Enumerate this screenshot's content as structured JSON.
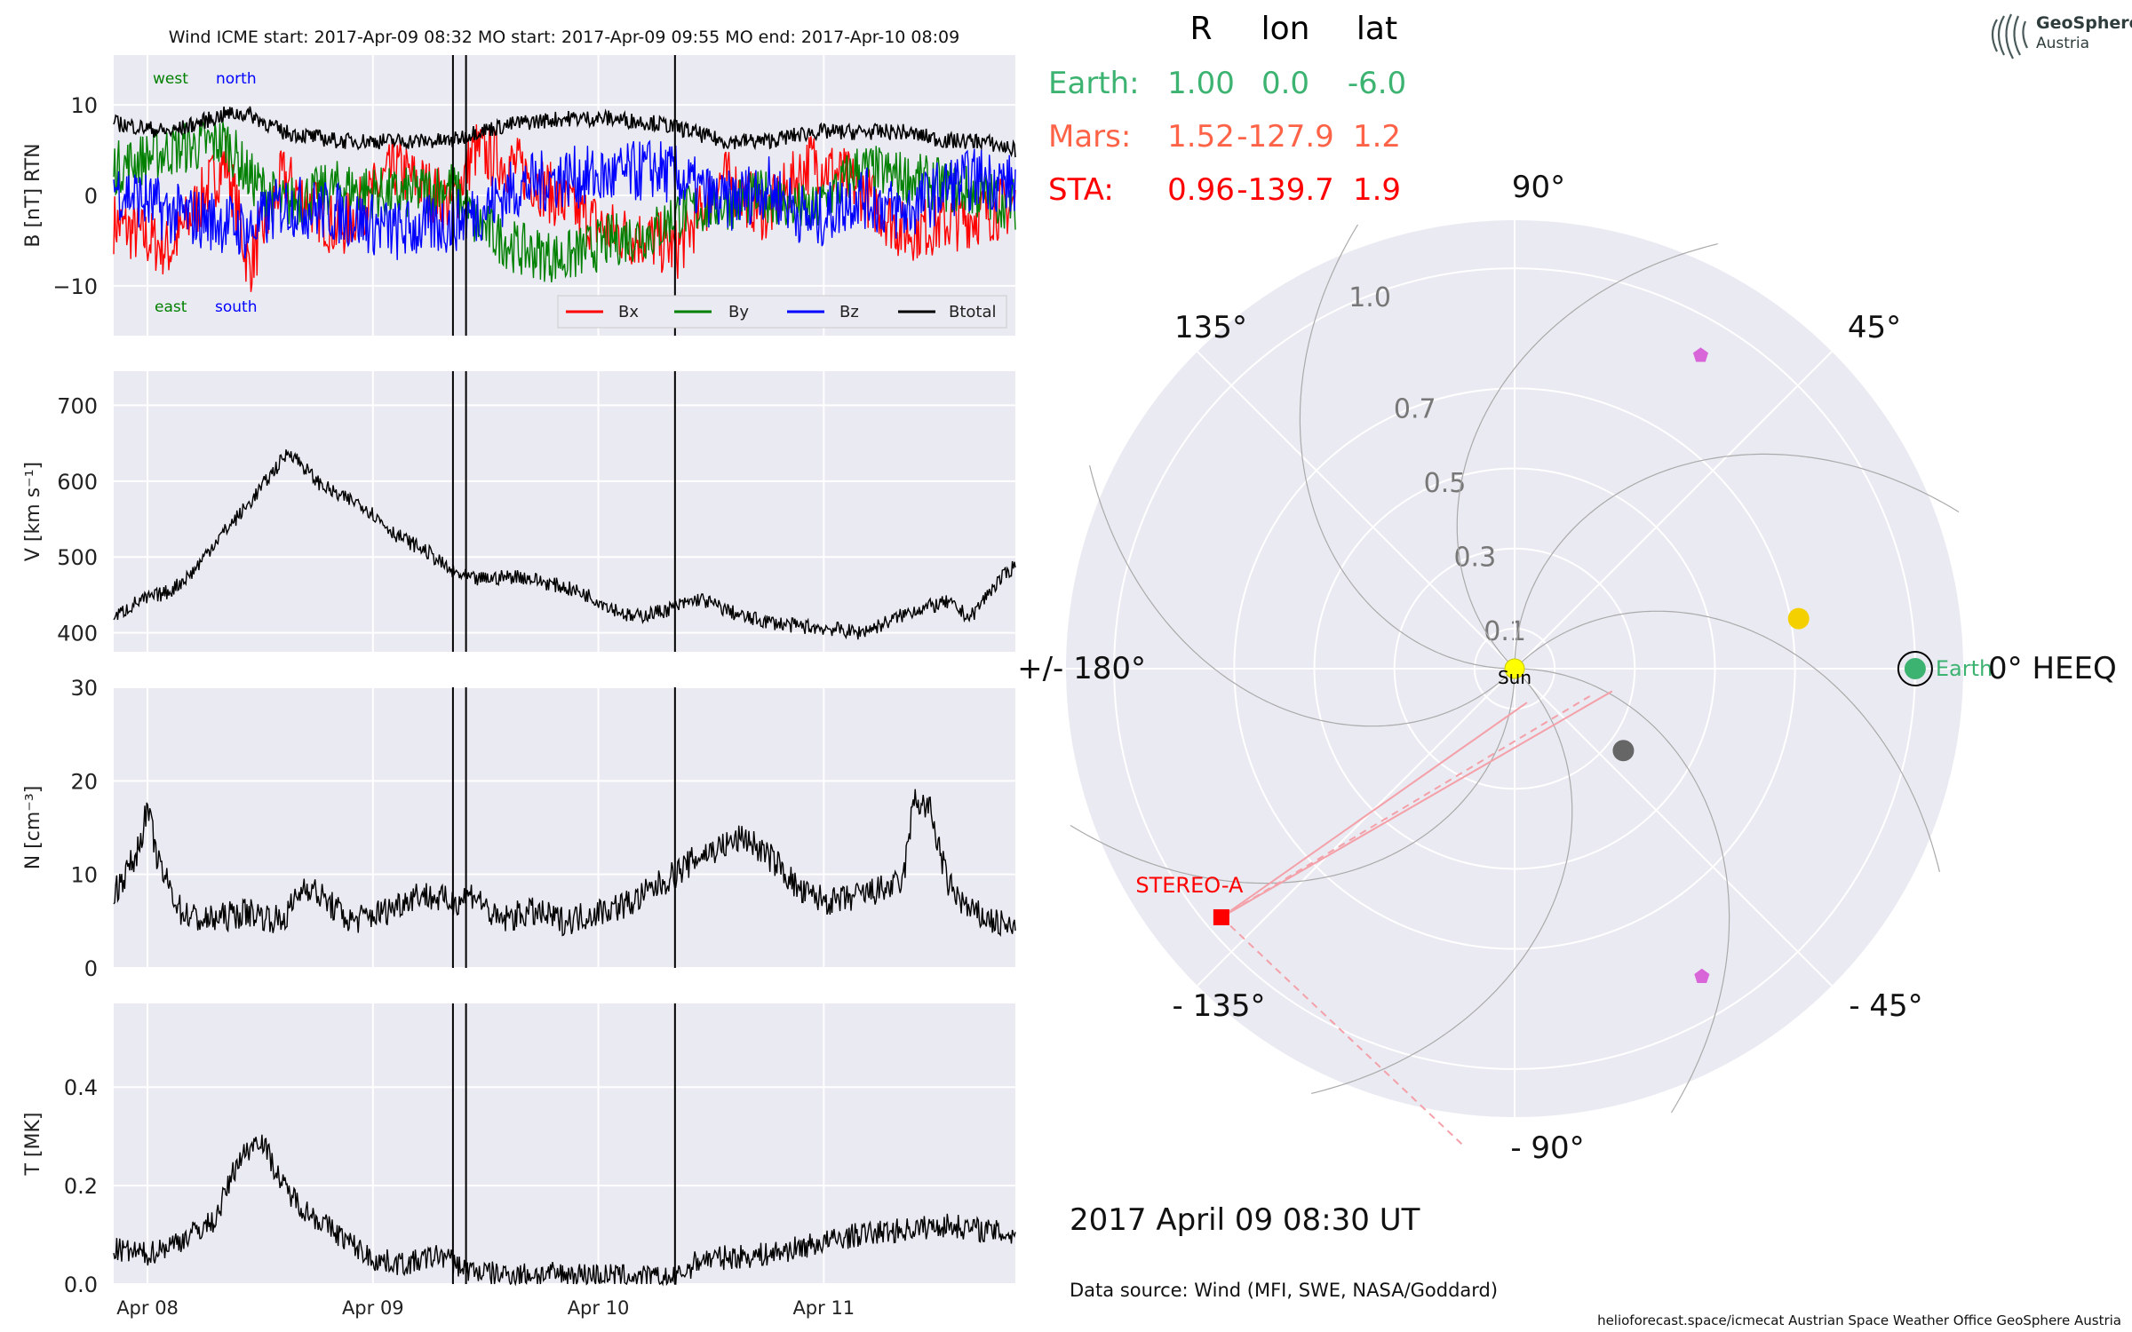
{
  "chart_data": [
    {
      "type": "line",
      "title": "Wind    ICME start: 2017-Apr-09 08:32    MO start: 2017-Apr-09 09:55    MO end: 2017-Apr-10 08:09",
      "ylabel": "B [nT] RTN",
      "ylim": [
        -15.5,
        15.5
      ],
      "yticks": [
        -10,
        0,
        10
      ],
      "ytick_labels": [
        "−10",
        "0",
        "10"
      ],
      "x_range_days": [
        0,
        4.0
      ],
      "x_ticks": [
        {
          "label": "Apr 08",
          "day": 0.15
        },
        {
          "label": "Apr 09",
          "day": 1.15
        },
        {
          "label": "Apr 10",
          "day": 2.15
        },
        {
          "label": "Apr 11",
          "day": 3.15
        }
      ],
      "vlines_day": [
        1.505,
        1.563,
        2.49
      ],
      "annotations": {
        "west": "west",
        "north": "north",
        "east": "east",
        "south": "south"
      },
      "legend": {
        "placement": "lower-right",
        "entries": [
          "Bx",
          "By",
          "Bz",
          "Btotal"
        ]
      },
      "series": [
        {
          "name": "Bx",
          "color": "#ff0000",
          "x": [
            0,
            0.25,
            0.5,
            0.6,
            0.75,
            1,
            1.25,
            1.5,
            1.6,
            1.8,
            2,
            2.2,
            2.4,
            2.5,
            2.7,
            2.9,
            3.1,
            3.3,
            3.5,
            3.7,
            3.85,
            4.0
          ],
          "y": [
            -3,
            -6,
            4,
            -8,
            2,
            -4,
            3,
            -1,
            5,
            3,
            -1,
            -4,
            -5,
            -6,
            2,
            -2,
            4,
            1,
            -4,
            -3,
            -2,
            -1
          ]
        },
        {
          "name": "By",
          "color": "#008000",
          "x": [
            0,
            0.25,
            0.5,
            0.6,
            0.75,
            1,
            1.25,
            1.5,
            1.6,
            1.8,
            2,
            2.2,
            2.4,
            2.5,
            2.7,
            2.9,
            3.1,
            3.3,
            3.5,
            3.7,
            3.85,
            4.0
          ],
          "y": [
            3,
            5,
            6,
            2,
            -1,
            1,
            0,
            1,
            -3,
            -6,
            -7,
            -5,
            -4,
            -2,
            -1,
            0,
            -2,
            3,
            2,
            1,
            0,
            -1
          ]
        },
        {
          "name": "Bz",
          "color": "#0000ff",
          "x": [
            0,
            0.25,
            0.5,
            0.6,
            0.75,
            1,
            1.25,
            1.5,
            1.6,
            1.8,
            2,
            2.2,
            2.4,
            2.5,
            2.7,
            2.9,
            3.1,
            3.3,
            3.5,
            3.7,
            3.85,
            4.0
          ],
          "y": [
            1,
            -2,
            -3,
            -4,
            -1,
            -2,
            -4,
            -3,
            -2,
            1,
            2,
            2,
            3,
            2,
            -1,
            1,
            -3,
            0,
            -2,
            1,
            2,
            1
          ]
        },
        {
          "name": "Btotal",
          "color": "#000000",
          "x": [
            0,
            0.25,
            0.5,
            0.6,
            0.75,
            1,
            1.25,
            1.5,
            1.6,
            1.8,
            2,
            2.2,
            2.4,
            2.5,
            2.7,
            2.9,
            3.1,
            3.3,
            3.5,
            3.7,
            3.85,
            4.0
          ],
          "y": [
            8,
            7,
            9,
            9,
            7,
            6,
            6,
            6,
            7,
            8,
            8.5,
            8.5,
            8,
            7.5,
            6,
            6,
            7,
            7,
            7,
            6,
            6,
            5
          ]
        }
      ]
    },
    {
      "type": "line",
      "ylabel": "V [km s⁻¹]",
      "ylim": [
        375,
        745
      ],
      "yticks": [
        400,
        500,
        600,
        700
      ],
      "ytick_labels": [
        "400",
        "500",
        "600",
        "700"
      ],
      "x_range_days": [
        0,
        4.0
      ],
      "vlines_day": [
        1.505,
        1.563,
        2.49
      ],
      "series": [
        {
          "color": "#000000",
          "x": [
            0,
            0.1,
            0.25,
            0.35,
            0.45,
            0.6,
            0.7,
            0.78,
            0.9,
            1.0,
            1.1,
            1.25,
            1.4,
            1.5,
            1.6,
            1.8,
            2.0,
            2.1,
            2.3,
            2.45,
            2.6,
            2.8,
            3.0,
            3.2,
            3.3,
            3.4,
            3.55,
            3.7,
            3.8,
            3.9,
            4.0
          ],
          "y": [
            420,
            440,
            455,
            480,
            520,
            570,
            610,
            640,
            600,
            580,
            570,
            530,
            505,
            480,
            470,
            475,
            460,
            450,
            420,
            430,
            445,
            420,
            410,
            405,
            400,
            410,
            430,
            440,
            420,
            460,
            490
          ]
        }
      ]
    },
    {
      "type": "line",
      "ylabel": "N [cm⁻³]",
      "ylim": [
        0,
        30
      ],
      "yticks": [
        0,
        10,
        20,
        30
      ],
      "ytick_labels": [
        "0",
        "10",
        "20",
        "30"
      ],
      "x_range_days": [
        0,
        4.0
      ],
      "vlines_day": [
        1.505,
        1.563,
        2.49
      ],
      "series": [
        {
          "color": "#000000",
          "x": [
            0,
            0.1,
            0.15,
            0.2,
            0.3,
            0.4,
            0.6,
            0.75,
            0.85,
            0.95,
            1.05,
            1.2,
            1.35,
            1.5,
            1.6,
            1.7,
            1.85,
            2.0,
            2.15,
            2.3,
            2.49,
            2.6,
            2.8,
            2.95,
            3.05,
            3.2,
            3.35,
            3.5,
            3.55,
            3.62,
            3.7,
            3.8,
            3.9,
            4.0
          ],
          "y": [
            8,
            12,
            17,
            11,
            6,
            5,
            6,
            5,
            9,
            7,
            5,
            6,
            8,
            7,
            8,
            5,
            6,
            5,
            6,
            7,
            10,
            12,
            14,
            11,
            8,
            7,
            8,
            9,
            18,
            17,
            9,
            6,
            5,
            4
          ]
        }
      ]
    },
    {
      "type": "line",
      "ylabel": "T [MK]",
      "ylim": [
        0,
        0.57
      ],
      "yticks": [
        0.0,
        0.2,
        0.4
      ],
      "ytick_labels": [
        "0.0",
        "0.2",
        "0.4"
      ],
      "x_range_days": [
        0,
        4.0
      ],
      "vlines_day": [
        1.505,
        1.563,
        2.49
      ],
      "series": [
        {
          "color": "#000000",
          "x": [
            0,
            0.15,
            0.3,
            0.45,
            0.55,
            0.65,
            0.75,
            0.85,
            1.0,
            1.15,
            1.3,
            1.45,
            1.56,
            1.7,
            1.9,
            2.1,
            2.3,
            2.49,
            2.6,
            2.9,
            3.1,
            3.3,
            3.5,
            3.7,
            3.85,
            4.0
          ],
          "y": [
            0.07,
            0.06,
            0.09,
            0.13,
            0.25,
            0.3,
            0.2,
            0.15,
            0.1,
            0.05,
            0.04,
            0.06,
            0.03,
            0.02,
            0.02,
            0.02,
            0.015,
            0.01,
            0.05,
            0.06,
            0.08,
            0.1,
            0.11,
            0.12,
            0.11,
            0.1
          ]
        }
      ]
    },
    {
      "type": "scatter",
      "subtype": "polar",
      "r_grid": [
        0.1,
        0.3,
        0.5,
        0.7,
        1.0
      ],
      "r_grid_labels": [
        "0.1",
        "0.3",
        "0.5",
        "0.7",
        "1.0"
      ],
      "angle_labels": [
        {
          "deg": 0,
          "label": "0° HEEQ"
        },
        {
          "deg": 45,
          "label": "45°"
        },
        {
          "deg": 90,
          "label": "90°"
        },
        {
          "deg": 135,
          "label": "135°"
        },
        {
          "deg": 180,
          "label": "+/- 180°"
        },
        {
          "deg": -135,
          "label": "- 135°"
        },
        {
          "deg": -90,
          "label": "- 90°"
        },
        {
          "deg": -45,
          "label": "- 45°"
        }
      ],
      "r_max": 1.12,
      "table": {
        "headers": [
          "R",
          "lon",
          "lat"
        ],
        "rows": [
          {
            "name": "Earth:",
            "R": "1.00",
            "lon": "0.0",
            "lat": "-6.0",
            "color": "#3cb371"
          },
          {
            "name": "Mars:",
            "R": "1.52",
            "lon": "-127.9",
            "lat": "1.2",
            "color": "#ff6347"
          },
          {
            "name": "STA:",
            "R": "0.96",
            "lon": "-139.7",
            "lat": "1.9",
            "color": "#ff0000"
          }
        ]
      },
      "bodies": [
        {
          "name": "Sun",
          "label": "Sun",
          "r": 0.0,
          "lon": 0,
          "color": "#ffff00"
        },
        {
          "name": "Earth",
          "label": "Earth",
          "r": 1.0,
          "lon": 0,
          "color": "#3cb371"
        },
        {
          "name": "STEREO-A",
          "label": "STEREO-A",
          "r": 0.96,
          "lon": -139.7,
          "color": "#ff0000"
        },
        {
          "name": "Venus",
          "r": 0.72,
          "lon": 10.0,
          "color": "#f5d000"
        },
        {
          "name": "Mercury",
          "r": 0.34,
          "lon": -37.0,
          "color": "#666666"
        },
        {
          "name": "probe-north",
          "r": 0.91,
          "lon": 59.3,
          "color": "#d966d9"
        },
        {
          "name": "probe-south",
          "r": 0.9,
          "lon": -58.7,
          "color": "#d966d9"
        }
      ],
      "date_label": "2017 April 09  08:30 UT",
      "source_label": "Data source: Wind (MFI, SWE, NASA/Goddard)",
      "credits": "helioforecast.space/icmecat   Austrian Space Weather Office   GeoSphere Austria"
    }
  ],
  "logo": {
    "line1": "GeoSphere",
    "line2": "Austria"
  }
}
